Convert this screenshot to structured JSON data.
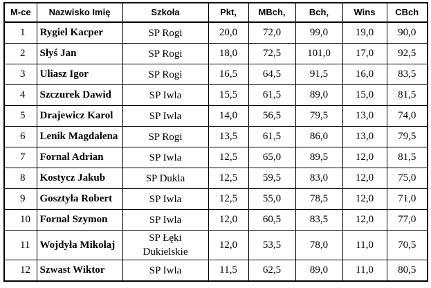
{
  "table": {
    "headers": [
      "M-ce",
      "Nazwisko Imię",
      "Szkoła",
      "Pkt,",
      "MBch,",
      "Bch,",
      "Wins",
      "CBch"
    ],
    "rows": [
      {
        "place": "1",
        "name": "Rygiel Kacper",
        "school": "SP Rogi",
        "pkt": "20,0",
        "mbch": "72,0",
        "bch": "99,0",
        "wins": "19,0",
        "cbch": "90,0"
      },
      {
        "place": "2",
        "name": "Słyś Jan",
        "school": "SP Rogi",
        "pkt": "18,0",
        "mbch": "72,5",
        "bch": "101,0",
        "wins": "17,0",
        "cbch": "92,5"
      },
      {
        "place": "3",
        "name": "Uliasz Igor",
        "school": "SP Rogi",
        "pkt": "16,5",
        "mbch": "64,5",
        "bch": "91,5",
        "wins": "16,0",
        "cbch": "83,5"
      },
      {
        "place": "4",
        "name": "Szczurek Dawid",
        "school": "SP Iwla",
        "pkt": "15,5",
        "mbch": "61,5",
        "bch": "89,0",
        "wins": "15,0",
        "cbch": "81,5"
      },
      {
        "place": "5",
        "name": "Drajewicz Karol",
        "school": "SP Iwla",
        "pkt": "14,0",
        "mbch": "56,5",
        "bch": "79,5",
        "wins": "13,0",
        "cbch": "74,0"
      },
      {
        "place": "6",
        "name": "Lenik Magdalena",
        "school": "SP Rogi",
        "pkt": "13,5",
        "mbch": "61,5",
        "bch": "86,0",
        "wins": "13,0",
        "cbch": "79,5"
      },
      {
        "place": "7",
        "name": "Fornal Adrian",
        "school": "SP Iwla",
        "pkt": "12,5",
        "mbch": "65,0",
        "bch": "89,5",
        "wins": "12,0",
        "cbch": "81,5"
      },
      {
        "place": "8",
        "name": "Kostycz Jakub",
        "school": "SP Dukla",
        "pkt": "12,5",
        "mbch": "59,5",
        "bch": "83,0",
        "wins": "12,0",
        "cbch": "75,0"
      },
      {
        "place": "9",
        "name": "Gosztyła Robert",
        "school": "SP Iwla",
        "pkt": "12,5",
        "mbch": "55,0",
        "bch": "78,5",
        "wins": "12,0",
        "cbch": "71,0"
      },
      {
        "place": "10",
        "name": "Fornal Szymon",
        "school": "SP Iwla",
        "pkt": "12,0",
        "mbch": "60,5",
        "bch": "83,5",
        "wins": "12,0",
        "cbch": "77,0"
      },
      {
        "place": "11",
        "name": "Wojdyła Mikołaj",
        "school_line1": "SP Łęki",
        "school_line2": "Dukielskie",
        "pkt": "12,0",
        "mbch": "53,5",
        "bch": "78,0",
        "wins": "11,0",
        "cbch": "70,5"
      },
      {
        "place": "12",
        "name": "Szwast Wiktor",
        "school": "SP Iwla",
        "pkt": "11,5",
        "mbch": "62,5",
        "bch": "89,0",
        "wins": "11,0",
        "cbch": "80,5"
      }
    ]
  }
}
